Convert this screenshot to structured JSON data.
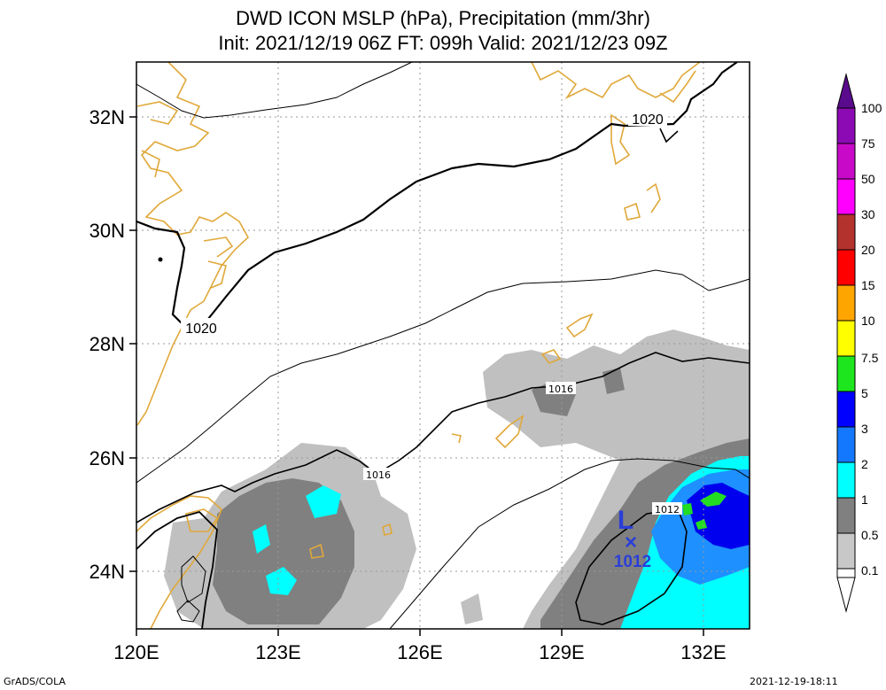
{
  "title_line1": "DWD ICON MSLP (hPa), Precipitation (mm/3hr)",
  "title_line2": "Init: 2021/12/19 06Z  FT: 099h  Valid: 2021/12/23 09Z",
  "lat_labels": [
    "32N",
    "30N",
    "28N",
    "26N",
    "24N"
  ],
  "lon_labels": [
    "120E",
    "123E",
    "126E",
    "129E",
    "132E"
  ],
  "isobar_labels": {
    "a": "1020",
    "b": "1020",
    "c": "1016",
    "d": "1016",
    "e": "1012"
  },
  "low_center": {
    "symbol": "L",
    "marker": "×",
    "pressure": "1012"
  },
  "colorbar": {
    "labels": [
      "100",
      "75",
      "50",
      "30",
      "20",
      "15",
      "10",
      "7.5",
      "5",
      "3",
      "2",
      "1",
      "0.5",
      "0.1"
    ],
    "colors": [
      "#5a0a8c",
      "#8c0ab4",
      "#e10ad2",
      "#ff00ff",
      "#b4322d",
      "#e62828",
      "#ff0000",
      "#ffa500",
      "#ffff00",
      "#1ee61e",
      "#0000ff",
      "#1478ff",
      "#00ffff",
      "#808080",
      "#c8c8c8",
      "#ffffff"
    ]
  },
  "footer_left": "GrADS/COLA",
  "footer_right": "2021-12-19-18:11"
}
